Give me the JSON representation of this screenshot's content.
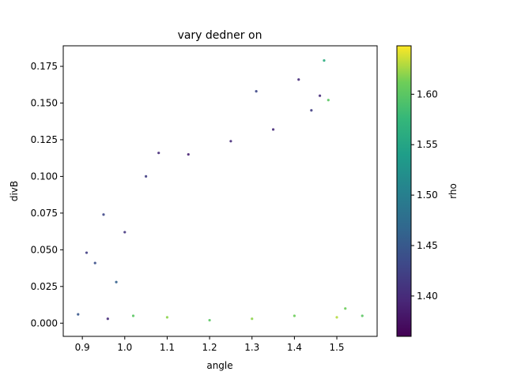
{
  "chart_data": {
    "type": "scatter",
    "title": "vary dedner on",
    "xlabel": "angle",
    "ylabel": "divB",
    "xlim": [
      0.855,
      1.595
    ],
    "ylim": [
      -0.009,
      0.189
    ],
    "x_ticks": [
      0.9,
      1.0,
      1.1,
      1.2,
      1.3,
      1.4,
      1.5
    ],
    "x_tick_labels": [
      "0.9",
      "1.0",
      "1.1",
      "1.2",
      "1.3",
      "1.4",
      "1.5"
    ],
    "y_ticks": [
      0.0,
      0.025,
      0.05,
      0.075,
      0.1,
      0.125,
      0.15,
      0.175
    ],
    "y_tick_labels": [
      "0.000",
      "0.025",
      "0.050",
      "0.075",
      "0.100",
      "0.125",
      "0.150",
      "0.175"
    ],
    "grid": false,
    "colorbar": {
      "label": "rho",
      "range": [
        1.36,
        1.648
      ],
      "ticks": [
        1.4,
        1.45,
        1.5,
        1.55,
        1.6
      ],
      "tick_labels": [
        "1.40",
        "1.45",
        "1.50",
        "1.55",
        "1.60"
      ],
      "colormap": "viridis"
    },
    "series": [
      {
        "color_by": "rho",
        "points": [
          {
            "x": 0.89,
            "y": 0.006,
            "c": 1.45
          },
          {
            "x": 0.91,
            "y": 0.048,
            "c": 1.42
          },
          {
            "x": 0.93,
            "y": 0.041,
            "c": 1.44
          },
          {
            "x": 0.95,
            "y": 0.074,
            "c": 1.43
          },
          {
            "x": 0.96,
            "y": 0.003,
            "c": 1.4
          },
          {
            "x": 0.98,
            "y": 0.028,
            "c": 1.46
          },
          {
            "x": 1.0,
            "y": 0.062,
            "c": 1.41
          },
          {
            "x": 1.02,
            "y": 0.005,
            "c": 1.6
          },
          {
            "x": 1.05,
            "y": 0.1,
            "c": 1.42
          },
          {
            "x": 1.08,
            "y": 0.116,
            "c": 1.4
          },
          {
            "x": 1.1,
            "y": 0.004,
            "c": 1.62
          },
          {
            "x": 1.15,
            "y": 0.115,
            "c": 1.39
          },
          {
            "x": 1.2,
            "y": 0.002,
            "c": 1.6
          },
          {
            "x": 1.25,
            "y": 0.124,
            "c": 1.4
          },
          {
            "x": 1.3,
            "y": 0.003,
            "c": 1.62
          },
          {
            "x": 1.31,
            "y": 0.158,
            "c": 1.43
          },
          {
            "x": 1.35,
            "y": 0.132,
            "c": 1.4
          },
          {
            "x": 1.4,
            "y": 0.005,
            "c": 1.61
          },
          {
            "x": 1.41,
            "y": 0.166,
            "c": 1.4
          },
          {
            "x": 1.44,
            "y": 0.145,
            "c": 1.42
          },
          {
            "x": 1.46,
            "y": 0.155,
            "c": 1.4
          },
          {
            "x": 1.47,
            "y": 0.179,
            "c": 1.56
          },
          {
            "x": 1.48,
            "y": 0.152,
            "c": 1.6
          },
          {
            "x": 1.5,
            "y": 0.004,
            "c": 1.63
          },
          {
            "x": 1.52,
            "y": 0.01,
            "c": 1.61
          },
          {
            "x": 1.56,
            "y": 0.005,
            "c": 1.6
          }
        ]
      }
    ]
  }
}
